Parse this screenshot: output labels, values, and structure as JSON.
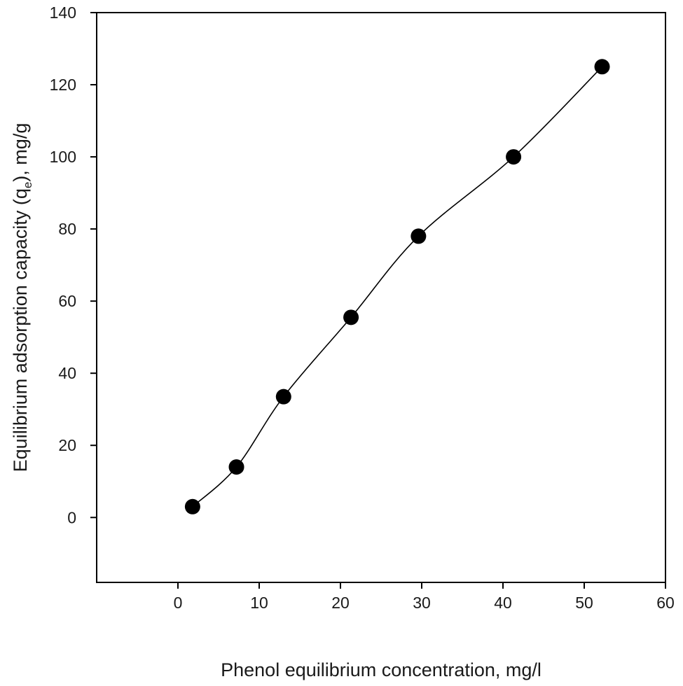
{
  "chart_data": {
    "type": "scatter",
    "xlabel": "Phenol equilibrium concentration, mg/l",
    "ylabel": {
      "before": "Equilibrium adsorption capacity (q",
      "subscript": "e",
      "after": "), mg/g"
    },
    "xlim": [
      -10,
      60
    ],
    "ylim": [
      -18,
      140
    ],
    "x_ticks": [
      0,
      10,
      20,
      30,
      40,
      50,
      60
    ],
    "y_ticks": [
      0,
      20,
      40,
      60,
      80,
      100,
      120,
      140
    ],
    "grid": false,
    "legend": "none",
    "series": [
      {
        "x": [
          1.8,
          7.2,
          13.0,
          21.3,
          29.6,
          41.3,
          52.2
        ],
        "y": [
          3,
          14,
          33.5,
          55.5,
          78,
          100,
          125
        ],
        "marker": "circle",
        "line": "smooth",
        "color": "#000000"
      }
    ]
  }
}
